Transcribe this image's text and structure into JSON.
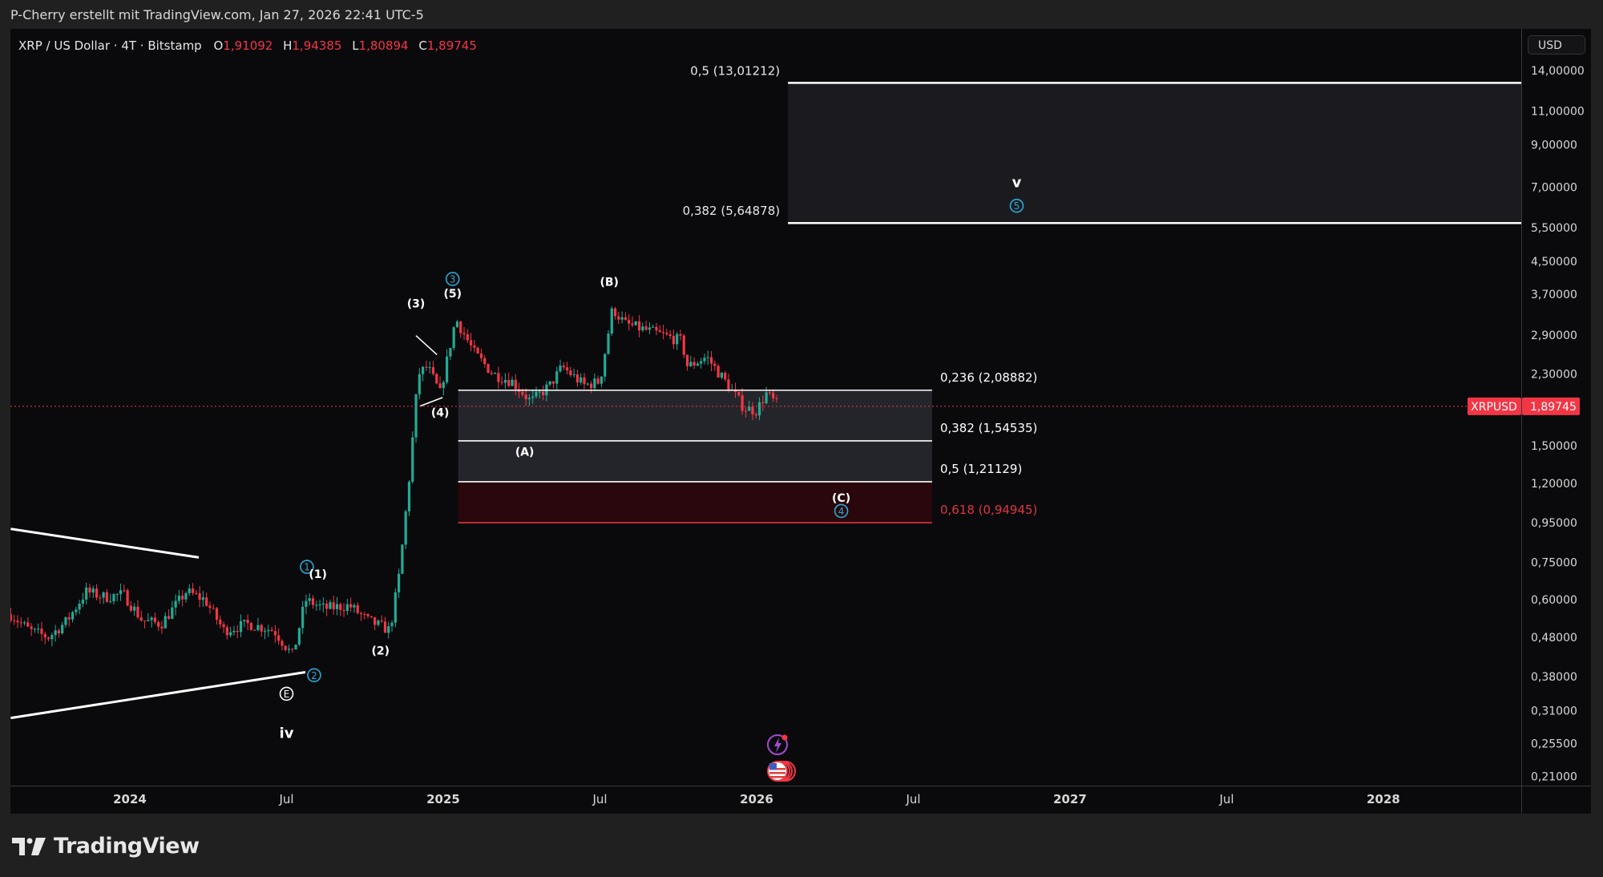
{
  "header": {
    "caption": "P-Cherry erstellt mit TradingView.com, Jan 27, 2026 22:41 UTC-5"
  },
  "legend": {
    "symbol": "XRP / US Dollar · 4T · Bitstamp",
    "open_label": "O",
    "open": "1,91092",
    "high_label": "H",
    "high": "1,94385",
    "low_label": "L",
    "low": "1,80894",
    "close_label": "C",
    "close": "1,89745"
  },
  "price_axis": {
    "currency": "USD",
    "scale": "log",
    "ticks": [
      "14,00000",
      "11,00000",
      "9,00000",
      "7,00000",
      "5,50000",
      "4,50000",
      "3,70000",
      "2,90000",
      "2,30000",
      "1,50000",
      "1,20000",
      "0,95000",
      "0,75000",
      "0,60000",
      "0,48000",
      "0,38000",
      "0,31000",
      "0,25500",
      "0,21000"
    ],
    "last_price": "1,89745",
    "last_symbol": "XRPUSD"
  },
  "time_axis": {
    "ticks": [
      {
        "label": "2024",
        "t": 2024.0,
        "bold": true
      },
      {
        "label": "Jul",
        "t": 2024.5,
        "bold": false
      },
      {
        "label": "2025",
        "t": 2025.0,
        "bold": true
      },
      {
        "label": "Jul",
        "t": 2025.5,
        "bold": false
      },
      {
        "label": "2026",
        "t": 2026.0,
        "bold": true
      },
      {
        "label": "Jul",
        "t": 2026.5,
        "bold": false
      },
      {
        "label": "2027",
        "t": 2027.0,
        "bold": true
      },
      {
        "label": "Jul",
        "t": 2027.5,
        "bold": false
      },
      {
        "label": "2028",
        "t": 2028.0,
        "bold": true
      }
    ]
  },
  "colors": {
    "up": "#22ab94",
    "down": "#f23645",
    "background": "#0a0a0d",
    "fib_line": "#ffffff",
    "fib_red": "#e03440",
    "wave_blue": "#2aa9d6",
    "event_purple": "#a24bd0"
  },
  "chart_data": {
    "type": "candlestick",
    "symbol": "XRPUSD",
    "interval": "4T",
    "approx_close_path": [
      [
        2023.62,
        0.55
      ],
      [
        2023.68,
        0.5
      ],
      [
        2023.74,
        0.48
      ],
      [
        2023.8,
        0.53
      ],
      [
        2023.86,
        0.63
      ],
      [
        2023.92,
        0.61
      ],
      [
        2023.98,
        0.62
      ],
      [
        2024.04,
        0.53
      ],
      [
        2024.1,
        0.52
      ],
      [
        2024.18,
        0.63
      ],
      [
        2024.24,
        0.6
      ],
      [
        2024.3,
        0.5
      ],
      [
        2024.38,
        0.52
      ],
      [
        2024.46,
        0.5
      ],
      [
        2024.52,
        0.43
      ],
      [
        2024.56,
        0.6
      ],
      [
        2024.62,
        0.57
      ],
      [
        2024.7,
        0.58
      ],
      [
        2024.76,
        0.53
      ],
      [
        2024.83,
        0.5
      ],
      [
        2024.86,
        0.7
      ],
      [
        2024.89,
        1.2
      ],
      [
        2024.92,
        2.3
      ],
      [
        2024.95,
        2.4
      ],
      [
        2024.99,
        2.05
      ],
      [
        2025.04,
        3.2
      ],
      [
        2025.1,
        2.6
      ],
      [
        2025.16,
        2.3
      ],
      [
        2025.22,
        2.2
      ],
      [
        2025.28,
        1.95
      ],
      [
        2025.34,
        2.15
      ],
      [
        2025.38,
        2.4
      ],
      [
        2025.45,
        2.15
      ],
      [
        2025.5,
        2.2
      ],
      [
        2025.54,
        3.4
      ],
      [
        2025.58,
        3.1
      ],
      [
        2025.64,
        3.0
      ],
      [
        2025.7,
        2.9
      ],
      [
        2025.76,
        2.8
      ],
      [
        2025.78,
        2.4
      ],
      [
        2025.84,
        2.55
      ],
      [
        2025.9,
        2.2
      ],
      [
        2025.96,
        1.88
      ],
      [
        2026.0,
        1.85
      ],
      [
        2026.03,
        2.05
      ],
      [
        2026.07,
        1.9
      ]
    ],
    "fib_levels_upper": [
      {
        "label": "0,5 (13,01212)",
        "price": 13.01212
      },
      {
        "label": "0,382 (5,64878)",
        "price": 5.64878
      }
    ],
    "fib_levels_lower": [
      {
        "label": "0,236 (2,08882)",
        "price": 2.08882,
        "color": "#ffffff"
      },
      {
        "label": "0,382 (1,54535)",
        "price": 1.54535,
        "color": "#ffffff"
      },
      {
        "label": "0,5 (1,21129)",
        "price": 1.21129,
        "color": "#ffffff"
      },
      {
        "label": "0,618 (0,94945)",
        "price": 0.94945,
        "color": "#e03440"
      }
    ],
    "trendlines": [
      {
        "from": [
          2023.62,
          0.915
        ],
        "to": [
          2024.22,
          0.772
        ]
      },
      {
        "from": [
          2023.62,
          0.297
        ],
        "to": [
          2024.56,
          0.39
        ]
      },
      {
        "from": [
          2024.913,
          2.89
        ],
        "to": [
          2024.98,
          2.58
        ]
      },
      {
        "from": [
          2024.926,
          1.9
        ],
        "to": [
          2024.998,
          2.0
        ]
      }
    ],
    "wave_labels": [
      {
        "text": "(3)",
        "t": 2024.913,
        "p": 3.5,
        "circle": false
      },
      {
        "text": "3",
        "t": 2025.03,
        "p": 4.05,
        "circle": true,
        "color": "blue"
      },
      {
        "text": "(5)",
        "t": 2025.03,
        "p": 3.72,
        "circle": false
      },
      {
        "text": "(4)",
        "t": 2024.99,
        "p": 1.83,
        "circle": false
      },
      {
        "text": "(B)",
        "t": 2025.53,
        "p": 3.98,
        "circle": false
      },
      {
        "text": "(A)",
        "t": 2025.26,
        "p": 1.45,
        "circle": false
      },
      {
        "text": "(C)",
        "t": 2026.27,
        "p": 1.1,
        "circle": false
      },
      {
        "text": "4",
        "t": 2026.27,
        "p": 1.018,
        "circle": true,
        "color": "blue"
      },
      {
        "text": "v",
        "t": 2026.83,
        "p": 7.16,
        "circle": false
      },
      {
        "text": "5",
        "t": 2026.83,
        "p": 6.26,
        "circle": true,
        "color": "blue"
      },
      {
        "text": "1",
        "t": 2024.565,
        "p": 0.73,
        "circle": true,
        "color": "blue"
      },
      {
        "text": "(1)",
        "t": 2024.6,
        "p": 0.7,
        "circle": false
      },
      {
        "text": "2",
        "t": 2024.588,
        "p": 0.383,
        "circle": true,
        "color": "blue"
      },
      {
        "text": "E",
        "t": 2024.5,
        "p": 0.343,
        "circle": true,
        "color": "white"
      },
      {
        "text": "iv",
        "t": 2024.5,
        "p": 0.27,
        "circle": false
      },
      {
        "text": "(2)",
        "t": 2024.8,
        "p": 0.444,
        "circle": false
      }
    ]
  },
  "branding": {
    "logo_text": "TradingView"
  }
}
